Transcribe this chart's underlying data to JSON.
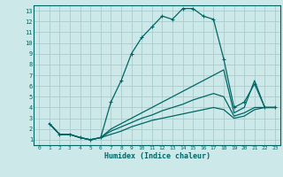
{
  "xlabel": "Humidex (Indice chaleur)",
  "bg_color": "#cce8e8",
  "grid_color": "#aacccc",
  "line_color": "#006666",
  "xlim": [
    -0.5,
    23.5
  ],
  "ylim": [
    0.5,
    13.5
  ],
  "xticks": [
    0,
    1,
    2,
    3,
    4,
    5,
    6,
    7,
    8,
    9,
    10,
    11,
    12,
    13,
    14,
    15,
    16,
    17,
    18,
    19,
    20,
    21,
    22,
    23
  ],
  "yticks": [
    1,
    2,
    3,
    4,
    5,
    6,
    7,
    8,
    9,
    10,
    11,
    12,
    13
  ],
  "lines": [
    {
      "x": [
        1,
        2,
        3,
        4,
        5,
        6,
        7,
        8,
        9,
        10,
        11,
        12,
        13,
        14,
        15,
        16,
        17,
        18,
        19,
        20,
        21,
        22,
        23
      ],
      "y": [
        2.5,
        1.5,
        1.5,
        1.2,
        1.0,
        1.2,
        4.5,
        6.5,
        9.0,
        10.5,
        11.5,
        12.5,
        12.2,
        13.2,
        13.2,
        12.5,
        12.2,
        8.5,
        4.0,
        4.5,
        6.2,
        4.0,
        4.0
      ],
      "marker": "+"
    },
    {
      "x": [
        1,
        2,
        3,
        4,
        5,
        6,
        7,
        8,
        9,
        10,
        11,
        12,
        13,
        14,
        15,
        16,
        17,
        18,
        19,
        20,
        21,
        22,
        23
      ],
      "y": [
        2.5,
        1.5,
        1.5,
        1.2,
        1.0,
        1.2,
        2.0,
        2.5,
        3.0,
        3.5,
        4.0,
        4.5,
        5.0,
        5.5,
        6.0,
        6.5,
        7.0,
        7.5,
        3.5,
        4.0,
        6.5,
        4.0,
        4.0
      ],
      "marker": null
    },
    {
      "x": [
        1,
        2,
        3,
        4,
        5,
        6,
        7,
        8,
        9,
        10,
        11,
        12,
        13,
        14,
        15,
        16,
        17,
        18,
        19,
        20,
        21,
        22,
        23
      ],
      "y": [
        2.5,
        1.5,
        1.5,
        1.2,
        1.0,
        1.2,
        1.8,
        2.2,
        2.6,
        3.0,
        3.3,
        3.7,
        4.0,
        4.3,
        4.7,
        5.0,
        5.3,
        5.0,
        3.2,
        3.5,
        4.0,
        4.0,
        4.0
      ],
      "marker": null
    },
    {
      "x": [
        1,
        2,
        3,
        4,
        5,
        6,
        7,
        8,
        9,
        10,
        11,
        12,
        13,
        14,
        15,
        16,
        17,
        18,
        19,
        20,
        21,
        22,
        23
      ],
      "y": [
        2.5,
        1.5,
        1.5,
        1.2,
        1.0,
        1.2,
        1.5,
        1.8,
        2.2,
        2.5,
        2.8,
        3.0,
        3.2,
        3.4,
        3.6,
        3.8,
        4.0,
        3.8,
        3.0,
        3.2,
        3.8,
        4.0,
        4.0
      ],
      "marker": null
    }
  ]
}
